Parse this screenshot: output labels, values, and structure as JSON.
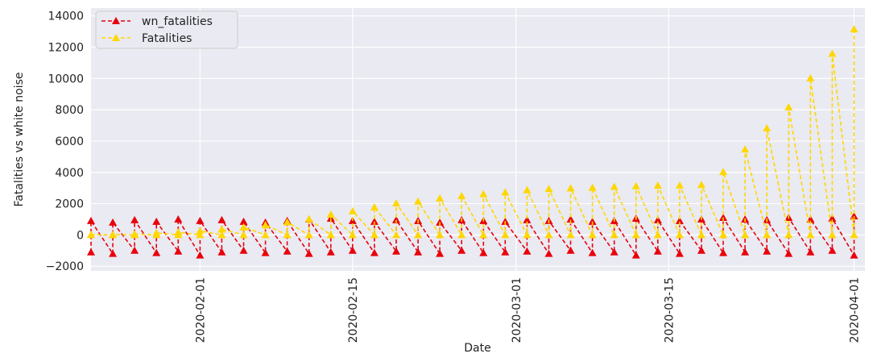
{
  "chart_data": {
    "type": "line",
    "x_label": "Date",
    "y_label": "Fatalities vs white noise",
    "x": [
      "2020-01-22",
      "2020-01-22",
      "2020-01-24",
      "2020-01-24",
      "2020-01-26",
      "2020-01-26",
      "2020-01-28",
      "2020-01-28",
      "2020-01-30",
      "2020-01-30",
      "2020-02-01",
      "2020-02-01",
      "2020-02-03",
      "2020-02-03",
      "2020-02-05",
      "2020-02-05",
      "2020-02-07",
      "2020-02-07",
      "2020-02-09",
      "2020-02-09",
      "2020-02-11",
      "2020-02-11",
      "2020-02-13",
      "2020-02-13",
      "2020-02-15",
      "2020-02-15",
      "2020-02-17",
      "2020-02-17",
      "2020-02-19",
      "2020-02-19",
      "2020-02-21",
      "2020-02-21",
      "2020-02-23",
      "2020-02-23",
      "2020-02-25",
      "2020-02-25",
      "2020-02-27",
      "2020-02-27",
      "2020-02-29",
      "2020-02-29",
      "2020-03-02",
      "2020-03-02",
      "2020-03-04",
      "2020-03-04",
      "2020-03-06",
      "2020-03-06",
      "2020-03-08",
      "2020-03-08",
      "2020-03-10",
      "2020-03-10",
      "2020-03-12",
      "2020-03-12",
      "2020-03-14",
      "2020-03-14",
      "2020-03-16",
      "2020-03-16",
      "2020-03-18",
      "2020-03-18",
      "2020-03-20",
      "2020-03-20",
      "2020-03-22",
      "2020-03-22",
      "2020-03-24",
      "2020-03-24",
      "2020-03-26",
      "2020-03-26",
      "2020-03-28",
      "2020-03-28",
      "2020-03-30",
      "2020-03-30",
      "2020-04-01",
      "2020-04-01"
    ],
    "series": [
      {
        "name": "wn_fatalities",
        "color": "#e8000b",
        "values": [
          -1100,
          900,
          -1200,
          800,
          -1000,
          950,
          -1150,
          850,
          -1050,
          1000,
          -1300,
          900,
          -1100,
          950,
          -1000,
          850,
          -1150,
          800,
          -1050,
          900,
          -1200,
          1000,
          -1100,
          1050,
          -1000,
          900,
          -1150,
          850,
          -1050,
          950,
          -1100,
          900,
          -1200,
          800,
          -1000,
          950,
          -1150,
          900,
          -1100,
          850,
          -1050,
          950,
          -1200,
          900,
          -1000,
          1000,
          -1150,
          850,
          -1100,
          900,
          -1300,
          1050,
          -1050,
          950,
          -1200,
          900,
          -1000,
          1000,
          -1150,
          1100,
          -1100,
          1000,
          -1050,
          950,
          -1200,
          1100,
          -1100,
          1000,
          -1000,
          1050,
          -1300,
          1200
        ]
      },
      {
        "name": "Fatalities",
        "color": "#ffd700",
        "values": [
          0,
          17,
          0,
          26,
          0,
          56,
          0,
          131,
          0,
          170,
          0,
          259,
          0,
          361,
          0,
          490,
          0,
          636,
          0,
          813,
          0,
          1016,
          0,
          1310,
          0,
          1523,
          0,
          1770,
          0,
          2029,
          0,
          2144,
          0,
          2346,
          0,
          2495,
          0,
          2615,
          0,
          2727,
          0,
          2870,
          0,
          2946,
          0,
          2986,
          0,
          3024,
          0,
          3085,
          0,
          3126,
          0,
          3160,
          0,
          3169,
          0,
          3199,
          0,
          4032,
          0,
          5476,
          0,
          6820,
          0,
          8165,
          0,
          10023,
          0,
          11591,
          0,
          13155
        ]
      }
    ],
    "xlim": [
      "2020-01-22",
      "2020-04-02"
    ],
    "xticks": [
      "2020-02-01",
      "2020-02-15",
      "2020-03-01",
      "2020-03-15",
      "2020-04-01"
    ],
    "ylim": [
      -2300,
      14500
    ],
    "yticks": [
      {
        "value": -2000,
        "label": "−2000"
      },
      0,
      2000,
      4000,
      6000,
      8000,
      10000,
      12000,
      14000
    ],
    "grid": true,
    "legend": "upper left"
  }
}
